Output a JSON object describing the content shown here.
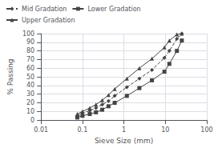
{
  "chart_data": {
    "type": "line",
    "xlabel": "Sieve Size (mm)",
    "ylabel": "% Passing",
    "x": [
      0.075,
      0.1,
      0.15,
      0.212,
      0.3,
      0.425,
      0.6,
      1.18,
      2.36,
      4.75,
      9.5,
      12.5,
      19.0,
      25.0
    ],
    "series": [
      {
        "name": "Mid Gradation",
        "color": "#444444",
        "marker": "diamond",
        "line_style": "dashed",
        "values": [
          5,
          8,
          11,
          14,
          18,
          22,
          28,
          38,
          48,
          58,
          72,
          80,
          94,
          100
        ]
      },
      {
        "name": "Lower Gradation",
        "color": "#444444",
        "marker": "square",
        "line_style": "solid",
        "values": [
          3,
          5,
          7,
          9,
          12,
          16,
          20,
          28,
          37,
          46,
          56,
          65,
          80,
          92
        ]
      },
      {
        "name": "Upper Gradation",
        "color": "#444444",
        "marker": "triangle",
        "line_style": "solid",
        "values": [
          7,
          10,
          14,
          18,
          23,
          29,
          36,
          48,
          60,
          71,
          84,
          92,
          99,
          100
        ]
      }
    ],
    "log": "x",
    "xlim": [
      0.01,
      100
    ],
    "xticks": [
      0.01,
      0.1,
      1,
      10,
      100
    ],
    "ylim": [
      0,
      100
    ],
    "yticks": [
      0,
      10,
      20,
      30,
      40,
      50,
      60,
      70,
      80,
      90,
      100
    ],
    "grid": true,
    "legend": "upper left"
  }
}
